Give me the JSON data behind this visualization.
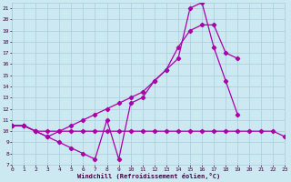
{
  "xlabel": "Windchill (Refroidissement éolien,°C)",
  "ylabel_ticks": [
    7,
    8,
    9,
    10,
    11,
    12,
    13,
    14,
    15,
    16,
    17,
    18,
    19,
    20,
    21
  ],
  "xlabel_ticks": [
    0,
    1,
    2,
    3,
    4,
    5,
    6,
    7,
    8,
    9,
    10,
    11,
    12,
    13,
    14,
    15,
    16,
    17,
    18,
    19,
    20,
    21,
    22,
    23
  ],
  "xlim": [
    0,
    23
  ],
  "ylim": [
    7,
    21.5
  ],
  "bg_color": "#cce8f0",
  "grid_color": "#aaccdd",
  "line_color": "#aa00aa",
  "lines": [
    {
      "x": [
        0,
        1,
        2,
        3,
        4,
        5,
        6,
        7,
        8,
        9,
        10,
        11,
        12,
        13,
        14,
        15,
        16,
        17,
        18,
        19,
        20,
        21,
        22,
        23
      ],
      "y": [
        10.5,
        10.5,
        10.0,
        10.0,
        10.0,
        10.0,
        10.0,
        10.0,
        10.0,
        10.0,
        10.0,
        10.0,
        10.0,
        10.0,
        10.0,
        10.0,
        10.0,
        10.0,
        10.0,
        10.0,
        10.0,
        10.0,
        10.0,
        9.5
      ]
    },
    {
      "x": [
        0,
        1,
        2,
        3,
        4,
        5,
        6,
        7,
        8,
        9,
        10,
        11,
        12,
        13,
        14,
        15,
        16,
        17,
        18,
        19
      ],
      "y": [
        10.5,
        10.5,
        10.0,
        9.5,
        9.0,
        8.5,
        8.0,
        7.5,
        11.0,
        7.5,
        12.5,
        13.0,
        14.5,
        15.5,
        16.5,
        21.0,
        21.5,
        17.5,
        14.5,
        11.5
      ]
    },
    {
      "x": [
        0,
        1,
        2,
        3,
        4,
        5,
        6,
        7,
        8,
        9,
        10,
        11,
        12,
        13,
        14,
        15,
        16,
        17,
        18,
        19
      ],
      "y": [
        10.5,
        10.5,
        10.0,
        9.5,
        10.0,
        10.5,
        11.0,
        11.5,
        12.0,
        12.5,
        13.0,
        13.5,
        14.5,
        15.5,
        17.5,
        19.0,
        19.5,
        19.5,
        17.0,
        16.5
      ]
    }
  ]
}
